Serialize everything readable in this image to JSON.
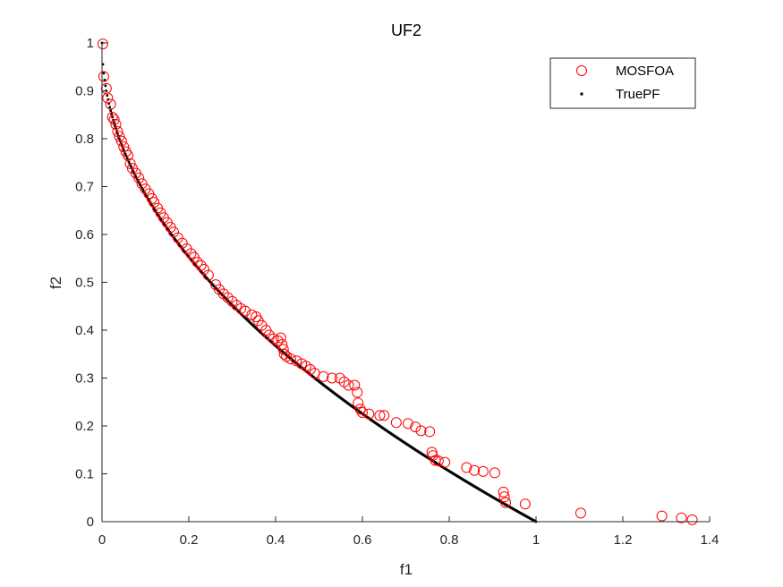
{
  "chart_data": {
    "type": "scatter",
    "title": "UF2",
    "xlabel": "f1",
    "ylabel": "f2",
    "xlim": [
      0,
      1.4
    ],
    "ylim": [
      0,
      1
    ],
    "xticks": [
      "0",
      "0.2",
      "0.4",
      "0.6",
      "0.8",
      "1",
      "1.2",
      "1.4"
    ],
    "yticks": [
      "0",
      "0.1",
      "0.2",
      "0.3",
      "0.4",
      "0.5",
      "0.6",
      "0.7",
      "0.8",
      "0.9",
      "1"
    ],
    "legend_position": "top-right",
    "grid": false,
    "series": [
      {
        "name": "MOSFOA",
        "marker": "circle-open",
        "color": "#ff0000",
        "points": [
          [
            0.002,
            0.998
          ],
          [
            0.004,
            0.93
          ],
          [
            0.01,
            0.905
          ],
          [
            0.013,
            0.885
          ],
          [
            0.02,
            0.872
          ],
          [
            0.024,
            0.845
          ],
          [
            0.028,
            0.84
          ],
          [
            0.032,
            0.83
          ],
          [
            0.036,
            0.815
          ],
          [
            0.04,
            0.805
          ],
          [
            0.045,
            0.795
          ],
          [
            0.05,
            0.783
          ],
          [
            0.055,
            0.773
          ],
          [
            0.06,
            0.765
          ],
          [
            0.065,
            0.748
          ],
          [
            0.07,
            0.738
          ],
          [
            0.078,
            0.728
          ],
          [
            0.085,
            0.718
          ],
          [
            0.092,
            0.706
          ],
          [
            0.1,
            0.695
          ],
          [
            0.108,
            0.685
          ],
          [
            0.115,
            0.675
          ],
          [
            0.12,
            0.667
          ],
          [
            0.128,
            0.655
          ],
          [
            0.135,
            0.645
          ],
          [
            0.142,
            0.635
          ],
          [
            0.15,
            0.625
          ],
          [
            0.158,
            0.615
          ],
          [
            0.165,
            0.605
          ],
          [
            0.175,
            0.593
          ],
          [
            0.185,
            0.582
          ],
          [
            0.195,
            0.57
          ],
          [
            0.205,
            0.56
          ],
          [
            0.212,
            0.552
          ],
          [
            0.22,
            0.542
          ],
          [
            0.228,
            0.535
          ],
          [
            0.235,
            0.527
          ],
          [
            0.245,
            0.515
          ],
          [
            0.262,
            0.495
          ],
          [
            0.27,
            0.485
          ],
          [
            0.28,
            0.476
          ],
          [
            0.29,
            0.468
          ],
          [
            0.3,
            0.46
          ],
          [
            0.31,
            0.452
          ],
          [
            0.32,
            0.445
          ],
          [
            0.33,
            0.44
          ],
          [
            0.345,
            0.432
          ],
          [
            0.355,
            0.428
          ],
          [
            0.36,
            0.42
          ],
          [
            0.368,
            0.41
          ],
          [
            0.378,
            0.4
          ],
          [
            0.385,
            0.39
          ],
          [
            0.395,
            0.382
          ],
          [
            0.405,
            0.378
          ],
          [
            0.412,
            0.384
          ],
          [
            0.415,
            0.37
          ],
          [
            0.418,
            0.36
          ],
          [
            0.42,
            0.35
          ],
          [
            0.425,
            0.345
          ],
          [
            0.435,
            0.34
          ],
          [
            0.448,
            0.336
          ],
          [
            0.46,
            0.33
          ],
          [
            0.47,
            0.325
          ],
          [
            0.48,
            0.318
          ],
          [
            0.49,
            0.31
          ],
          [
            0.51,
            0.303
          ],
          [
            0.53,
            0.3
          ],
          [
            0.548,
            0.3
          ],
          [
            0.558,
            0.292
          ],
          [
            0.568,
            0.285
          ],
          [
            0.582,
            0.285
          ],
          [
            0.588,
            0.27
          ],
          [
            0.59,
            0.248
          ],
          [
            0.595,
            0.235
          ],
          [
            0.6,
            0.228
          ],
          [
            0.615,
            0.225
          ],
          [
            0.64,
            0.222
          ],
          [
            0.65,
            0.222
          ],
          [
            0.678,
            0.207
          ],
          [
            0.705,
            0.205
          ],
          [
            0.722,
            0.198
          ],
          [
            0.735,
            0.19
          ],
          [
            0.755,
            0.188
          ],
          [
            0.76,
            0.145
          ],
          [
            0.762,
            0.138
          ],
          [
            0.768,
            0.128
          ],
          [
            0.775,
            0.127
          ],
          [
            0.79,
            0.124
          ],
          [
            0.84,
            0.113
          ],
          [
            0.858,
            0.107
          ],
          [
            0.878,
            0.105
          ],
          [
            0.905,
            0.102
          ],
          [
            0.925,
            0.062
          ],
          [
            0.927,
            0.052
          ],
          [
            0.93,
            0.04
          ],
          [
            0.975,
            0.037
          ],
          [
            1.103,
            0.018
          ],
          [
            1.29,
            0.012
          ],
          [
            1.335,
            0.008
          ],
          [
            1.36,
            0.004
          ]
        ]
      },
      {
        "name": "TruePF",
        "marker": "dot",
        "color": "#000000",
        "function": "f2 = 1 - sqrt(f1)",
        "domain": [
          0,
          1
        ]
      }
    ]
  }
}
